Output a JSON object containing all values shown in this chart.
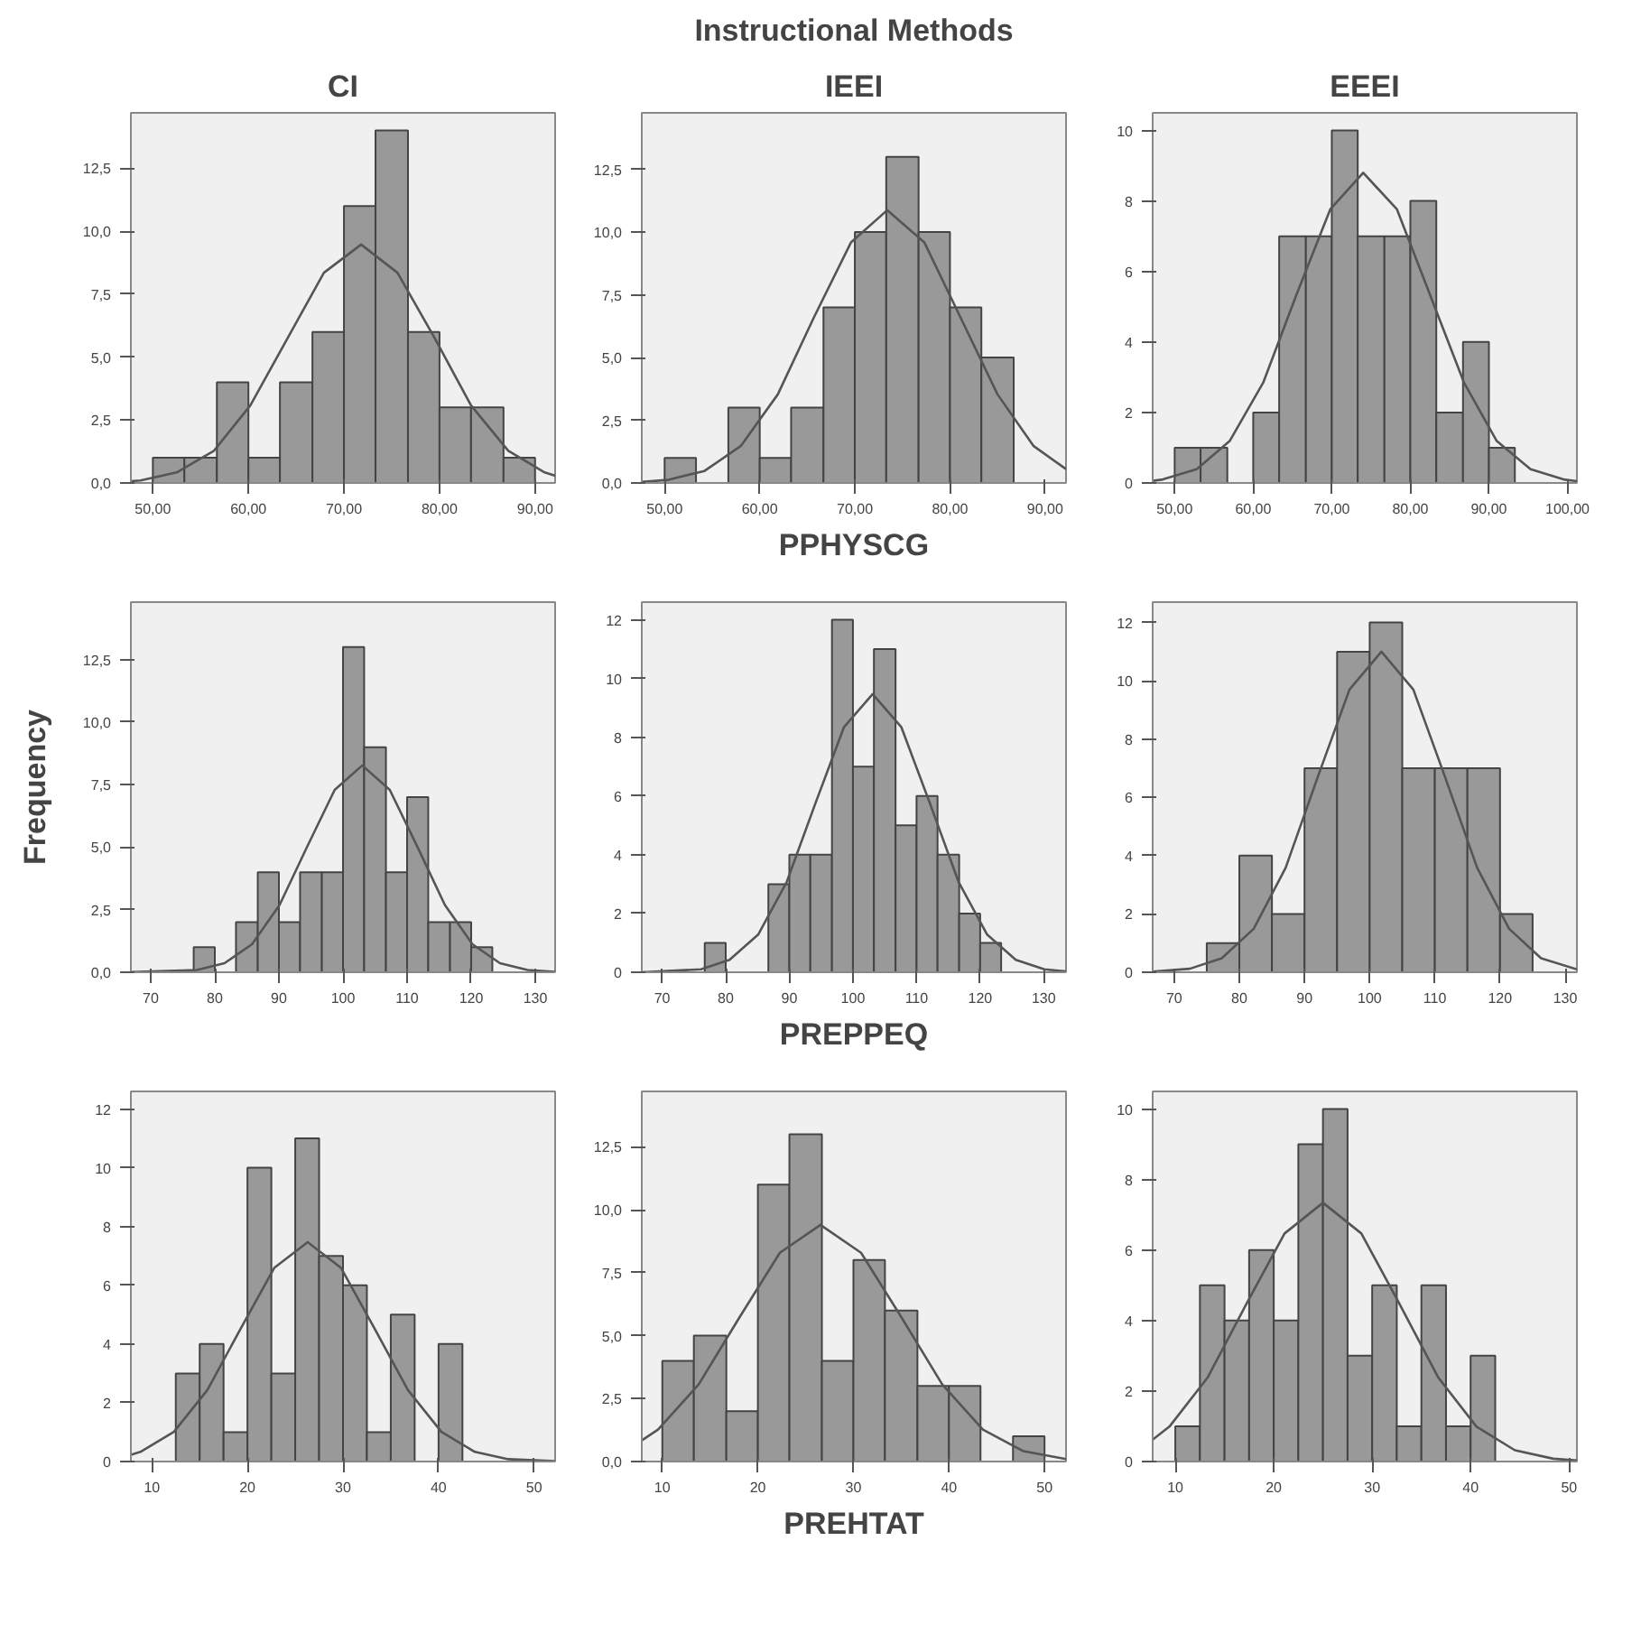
{
  "chart_data": [
    {
      "type": "histogram",
      "title": "CI",
      "bins": [
        50,
        53.3,
        56.7,
        60,
        63.3,
        66.7,
        70,
        73.3,
        76.7,
        80,
        83.3,
        86.7,
        90
      ],
      "values": [
        1,
        1,
        4,
        1,
        4,
        6,
        11,
        14,
        6,
        3,
        3,
        1
      ],
      "color": "#999999",
      "grid": false,
      "xlim": [
        47.7,
        92.1
      ],
      "ylim": [
        0,
        14.7
      ],
      "xticks": [
        {
          "value": 50,
          "label": "50,00"
        },
        {
          "value": 60,
          "label": "60,00"
        },
        {
          "value": 70,
          "label": "70,00"
        },
        {
          "value": 80,
          "label": "80,00"
        },
        {
          "value": 90,
          "label": "90,00"
        }
      ],
      "yticks": [
        {
          "value": 0,
          "label": "0,0"
        },
        {
          "value": 2.5,
          "label": "2,5"
        },
        {
          "value": 5,
          "label": "5,0"
        },
        {
          "value": 7.5,
          "label": "7,5"
        },
        {
          "value": 10,
          "label": "10,0"
        },
        {
          "value": 12.5,
          "label": "12,5"
        }
      ],
      "series": [
        {
          "type": "line",
          "color": "#555555",
          "x": [
            47.7,
            48.7,
            52.5,
            56.4,
            60.2,
            64.1,
            67.9,
            71.8,
            75.6,
            79.5,
            83.3,
            87.2,
            91.0,
            92.1
          ],
          "values": [
            0.07,
            0.1,
            0.42,
            1.28,
            3.08,
            5.75,
            8.35,
            9.47,
            8.35,
            5.75,
            3.08,
            1.28,
            0.42,
            0.29
          ]
        }
      ]
    },
    {
      "type": "histogram",
      "title": "Instructional Methods",
      "subtitle": "IEEI",
      "xlabel": "PPHYSCG",
      "bins": [
        50,
        53.3,
        56.7,
        60,
        63.3,
        66.7,
        70,
        73.3,
        76.7,
        80,
        83.3,
        86.7
      ],
      "values": [
        1,
        0,
        3,
        1,
        3,
        7,
        10,
        13,
        10,
        7,
        5
      ],
      "color": "#999999",
      "grid": false,
      "xlim": [
        47.6,
        92.2
      ],
      "ylim": [
        0,
        14.75
      ],
      "xticks": [
        {
          "value": 50,
          "label": "50,00"
        },
        {
          "value": 60,
          "label": "60,00"
        },
        {
          "value": 70,
          "label": "70,00"
        },
        {
          "value": 80,
          "label": "80,00"
        },
        {
          "value": 90,
          "label": "90,00"
        }
      ],
      "yticks": [
        {
          "value": 0,
          "label": "0,0"
        },
        {
          "value": 2.5,
          "label": "2,5"
        },
        {
          "value": 5,
          "label": "5,0"
        },
        {
          "value": 7.5,
          "label": "7,5"
        },
        {
          "value": 10,
          "label": "10,0"
        },
        {
          "value": 12.5,
          "label": "12,5"
        }
      ],
      "series": [
        {
          "type": "line",
          "color": "#555555",
          "x": [
            47.6,
            50.3,
            54.2,
            58.0,
            61.9,
            65.7,
            69.6,
            73.4,
            77.3,
            81.1,
            85.0,
            88.8,
            92.2
          ],
          "values": [
            0.04,
            0.12,
            0.48,
            1.47,
            3.53,
            6.6,
            9.59,
            10.87,
            9.59,
            6.6,
            3.53,
            1.47,
            0.55
          ]
        }
      ]
    },
    {
      "type": "histogram",
      "title": "EEEI",
      "bins": [
        50,
        53.3,
        56.7,
        60,
        63.3,
        66.7,
        70,
        73.3,
        76.7,
        80,
        83.3,
        86.7,
        90,
        93.3
      ],
      "values": [
        1,
        1,
        0,
        2,
        7,
        7,
        10,
        7,
        7,
        8,
        2,
        4,
        1
      ],
      "color": "#999999",
      "grid": false,
      "xlim": [
        47.2,
        101.2
      ],
      "ylim": [
        0,
        10.5
      ],
      "xticks": [
        {
          "value": 50,
          "label": "50,00"
        },
        {
          "value": 60,
          "label": "60,00"
        },
        {
          "value": 70,
          "label": "70,00"
        },
        {
          "value": 80,
          "label": "80,00"
        },
        {
          "value": 90,
          "label": "90,00"
        },
        {
          "value": 100,
          "label": "100,00"
        }
      ],
      "yticks": [
        0,
        2,
        4,
        6,
        8,
        10
      ],
      "series": [
        {
          "type": "line",
          "color": "#555555",
          "x": [
            47.2,
            48.5,
            52.8,
            57.0,
            61.3,
            65.5,
            69.8,
            74.0,
            78.3,
            82.5,
            86.8,
            91.0,
            95.3,
            99.5,
            101.2
          ],
          "values": [
            0.06,
            0.1,
            0.39,
            1.19,
            2.86,
            5.34,
            7.76,
            8.8,
            7.76,
            5.34,
            2.86,
            1.19,
            0.39,
            0.1,
            0.05
          ]
        }
      ]
    },
    {
      "type": "histogram",
      "ylabel": "Frequency",
      "bins": [
        76.7,
        80,
        83.3,
        86.7,
        90,
        93.3,
        96.7,
        100,
        103.3,
        106.7,
        110,
        113.3,
        116.7,
        120,
        123.3
      ],
      "values": [
        1,
        0,
        2,
        4,
        2,
        4,
        4,
        13,
        9,
        4,
        7,
        2,
        2,
        1
      ],
      "color": "#999999",
      "grid": false,
      "xlim": [
        66.9,
        133.1
      ],
      "ylim": [
        0,
        14.8
      ],
      "xticks": [
        70,
        80,
        90,
        100,
        110,
        120,
        130
      ],
      "yticks": [
        {
          "value": 0,
          "label": "0,0"
        },
        {
          "value": 2.5,
          "label": "2,5"
        },
        {
          "value": 5,
          "label": "5,0"
        },
        {
          "value": 7.5,
          "label": "7,5"
        },
        {
          "value": 10,
          "label": "10,0"
        },
        {
          "value": 12.5,
          "label": "12,5"
        }
      ],
      "series": [
        {
          "type": "line",
          "color": "#555555",
          "x": [
            66.9,
            77.2,
            81.5,
            85.8,
            90.1,
            94.4,
            98.7,
            103.0,
            107.3,
            111.6,
            115.9,
            120.2,
            124.5,
            128.8,
            133.1
          ],
          "values": [
            0.01,
            0.09,
            0.36,
            1.12,
            2.69,
            5.02,
            7.29,
            8.27,
            7.29,
            5.02,
            2.69,
            1.12,
            0.36,
            0.09,
            0.02
          ]
        }
      ]
    },
    {
      "type": "histogram",
      "xlabel": "PREPPEQ",
      "bins": [
        76.7,
        80,
        86.7,
        90,
        93.3,
        96.7,
        100,
        103.3,
        106.7,
        110,
        113.3,
        116.7,
        120,
        123.3
      ],
      "values": [
        1,
        0,
        3,
        4,
        4,
        12,
        7,
        11,
        5,
        6,
        4,
        2,
        1
      ],
      "color": "#999999",
      "grid": false,
      "xlim": [
        66.8,
        133.5
      ],
      "ylim": [
        0,
        12.6
      ],
      "xticks": [
        70,
        80,
        90,
        100,
        110,
        120,
        130
      ],
      "yticks": [
        0,
        2,
        4,
        6,
        8,
        10,
        12
      ],
      "series": [
        {
          "type": "line",
          "color": "#555555",
          "x": [
            66.8,
            76.1,
            80.6,
            85.1,
            89.6,
            94.1,
            98.6,
            103.1,
            107.6,
            112.1,
            116.6,
            121.1,
            125.6,
            130.1,
            133.5
          ],
          "values": [
            0.0,
            0.1,
            0.42,
            1.28,
            3.08,
            5.75,
            8.35,
            9.47,
            8.35,
            5.75,
            3.08,
            1.28,
            0.42,
            0.1,
            0.03
          ]
        }
      ]
    },
    {
      "type": "histogram",
      "bins": [
        75,
        80,
        85,
        90,
        95,
        100,
        105,
        110,
        115,
        120,
        125
      ],
      "values": [
        1,
        4,
        2,
        7,
        11,
        12,
        7,
        7,
        7,
        2
      ],
      "color": "#999999",
      "grid": false,
      "xlim": [
        66.7,
        131.8
      ],
      "ylim": [
        0,
        12.7
      ],
      "xticks": [
        70,
        80,
        90,
        100,
        110,
        120,
        130
      ],
      "yticks": [
        0,
        2,
        4,
        6,
        8,
        10,
        12
      ],
      "series": [
        {
          "type": "line",
          "color": "#555555",
          "x": [
            66.7,
            72.4,
            77.3,
            82.2,
            87.1,
            92.0,
            96.9,
            101.8,
            106.7,
            111.6,
            116.5,
            121.4,
            126.3,
            131.8
          ],
          "values": [
            0.02,
            0.12,
            0.48,
            1.49,
            3.58,
            6.68,
            9.7,
            11.0,
            9.7,
            6.68,
            3.58,
            1.49,
            0.48,
            0.1
          ]
        }
      ]
    },
    {
      "type": "histogram",
      "bins": [
        12.5,
        15,
        17.5,
        20,
        22.5,
        25,
        27.5,
        30,
        32.5,
        35,
        37.5,
        40,
        42.5
      ],
      "values": [
        3,
        4,
        1,
        10,
        3,
        11,
        7,
        6,
        1,
        5,
        0,
        4
      ],
      "color": "#999999",
      "grid": false,
      "xlim": [
        7.8,
        52.2
      ],
      "ylim": [
        0,
        12.6
      ],
      "xticks": [
        10,
        20,
        30,
        40,
        50
      ],
      "yticks": [
        0,
        2,
        4,
        6,
        8,
        10,
        12
      ],
      "series": [
        {
          "type": "line",
          "color": "#555555",
          "x": [
            7.8,
            8.8,
            12.3,
            15.8,
            19.3,
            22.8,
            26.3,
            29.8,
            33.3,
            36.8,
            40.3,
            43.8,
            47.3,
            52.2
          ],
          "values": [
            0.23,
            0.33,
            1.01,
            2.43,
            4.53,
            6.59,
            7.47,
            6.59,
            4.53,
            2.43,
            1.01,
            0.33,
            0.08,
            0.01
          ]
        }
      ]
    },
    {
      "type": "histogram",
      "xlabel": "PREHTAT",
      "bins": [
        10,
        13.3,
        16.7,
        20,
        23.3,
        26.7,
        30,
        33.3,
        36.7,
        40,
        43.3,
        46.7,
        50
      ],
      "values": [
        4,
        5,
        2,
        11,
        13,
        4,
        8,
        6,
        3,
        3,
        0,
        1
      ],
      "color": "#999999",
      "grid": false,
      "xlim": [
        7.85,
        52.25
      ],
      "ylim": [
        0,
        14.7
      ],
      "xticks": [
        10,
        20,
        30,
        40,
        50
      ],
      "yticks": [
        {
          "value": 0,
          "label": "0,0"
        },
        {
          "value": 2.5,
          "label": "2,5"
        },
        {
          "value": 5,
          "label": "5,0"
        },
        {
          "value": 7.5,
          "label": "7,5"
        },
        {
          "value": 10,
          "label": "10,0"
        },
        {
          "value": 12.5,
          "label": "12,5"
        }
      ],
      "series": [
        {
          "type": "line",
          "color": "#555555",
          "x": [
            7.85,
            9.55,
            13.8,
            18.05,
            22.3,
            26.55,
            30.8,
            35.05,
            39.3,
            43.55,
            47.8,
            52.25
          ],
          "values": [
            0.84,
            1.27,
            3.06,
            5.71,
            8.29,
            9.4,
            8.29,
            5.71,
            3.06,
            1.27,
            0.41,
            0.1
          ]
        }
      ]
    },
    {
      "type": "histogram",
      "bins": [
        10,
        12.5,
        15,
        17.5,
        20,
        22.5,
        25,
        27.5,
        30,
        32.5,
        35,
        37.5,
        40,
        42.5
      ],
      "values": [
        1,
        5,
        4,
        6,
        4,
        9,
        10,
        3,
        5,
        1,
        5,
        1,
        3
      ],
      "color": "#999999",
      "grid": false,
      "xlim": [
        7.7,
        50.8
      ],
      "ylim": [
        0,
        10.5
      ],
      "xticks": [
        10,
        20,
        30,
        40,
        50
      ],
      "yticks": [
        0,
        2,
        4,
        6,
        8,
        10
      ],
      "series": [
        {
          "type": "line",
          "color": "#555555",
          "x": [
            7.7,
            9.4,
            13.3,
            17.2,
            21.1,
            25.0,
            28.9,
            32.8,
            36.7,
            40.6,
            44.5,
            48.4,
            50.8
          ],
          "values": [
            0.62,
            0.99,
            2.39,
            4.46,
            6.47,
            7.34,
            6.47,
            4.46,
            2.39,
            0.99,
            0.32,
            0.08,
            0.03
          ]
        }
      ]
    }
  ]
}
